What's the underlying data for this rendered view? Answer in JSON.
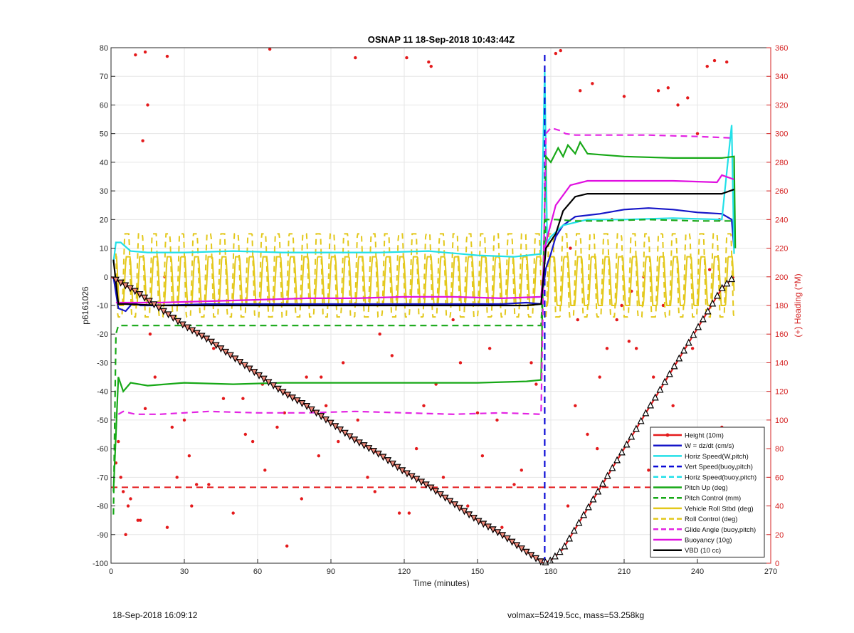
{
  "footer": {
    "left": "18-Sep-2018 16:09:12",
    "right": "volmax=52419.5cc, mass=53.258kg"
  },
  "chart_data": {
    "type": "line",
    "title": "OSNAP 11 18-Sep-2018 10:43:44Z",
    "xlabel": "Time (minutes)",
    "ylabel": "p6161026",
    "y2label": "(+) Heading (°M)",
    "xlim": [
      0,
      270
    ],
    "ylim": [
      -100,
      80
    ],
    "y2lim": [
      0,
      360
    ],
    "xticks": [
      0,
      30,
      60,
      90,
      120,
      150,
      180,
      210,
      240,
      270
    ],
    "yticks": [
      -100,
      -90,
      -80,
      -70,
      -60,
      -50,
      -40,
      -30,
      -20,
      -10,
      0,
      10,
      20,
      30,
      40,
      50,
      60,
      70,
      80
    ],
    "y2ticks": [
      0,
      20,
      40,
      60,
      80,
      100,
      120,
      140,
      160,
      180,
      200,
      220,
      240,
      260,
      280,
      300,
      320,
      340,
      360
    ],
    "grid": true,
    "legend_position": "bottom-right",
    "series": [
      {
        "name": "Height (10m)",
        "color": "#e41a1c",
        "style": "solid",
        "marker": "dot",
        "x": [
          0,
          10,
          20,
          30,
          40,
          50,
          60,
          70,
          80,
          90,
          100,
          110,
          120,
          130,
          140,
          150,
          160,
          170,
          177,
          180,
          185,
          190,
          200,
          210,
          220,
          230,
          240,
          250,
          255
        ],
        "values": [
          0,
          -5,
          -11,
          -17,
          -22,
          -28,
          -34,
          -40,
          -45,
          -51,
          -57,
          -62,
          -68,
          -73,
          -79,
          -85,
          -90,
          -96,
          -100,
          -99,
          -95,
          -88,
          -74,
          -60,
          -46,
          -32,
          -18,
          -4,
          0
        ]
      },
      {
        "name": "W = dz/dt (cm/s)",
        "color": "#1515c8",
        "style": "solid",
        "x": [
          1,
          3,
          6,
          9,
          12,
          20,
          40,
          60,
          80,
          100,
          120,
          140,
          160,
          170,
          176,
          178,
          180,
          182,
          185,
          190,
          200,
          210,
          220,
          230,
          240,
          250,
          254,
          255
        ],
        "values": [
          0,
          -11,
          -12,
          -9,
          -10,
          -10,
          -9.5,
          -9.5,
          -9.5,
          -9.5,
          -9.5,
          -9.5,
          -9.5,
          -9,
          -9.5,
          3,
          8,
          14,
          18,
          21,
          22,
          23.5,
          24,
          23.5,
          22.5,
          22,
          20,
          10
        ]
      },
      {
        "name": "Horiz Speed(W,pitch)",
        "color": "#22e0e8",
        "style": "solid",
        "x": [
          1,
          2,
          4,
          8,
          15,
          30,
          50,
          70,
          90,
          110,
          130,
          150,
          165,
          176,
          177.5,
          178.5,
          180,
          185,
          190,
          195,
          210,
          230,
          250,
          254,
          255
        ],
        "values": [
          5,
          12,
          12,
          9,
          8.5,
          8.5,
          9,
          8.5,
          8.5,
          8.5,
          9,
          7.5,
          7,
          8,
          72,
          12,
          14,
          18,
          19,
          20,
          20,
          20.5,
          20,
          53,
          8
        ]
      },
      {
        "name": "Vert Speed(buoy,pitch)",
        "color": "#0b0bd6",
        "style": "dashed",
        "x": [
          177.5,
          177.5
        ],
        "values": [
          -100,
          78
        ]
      },
      {
        "name": "Horiz Speed(buoy,pitch)",
        "color": "#22e0e8",
        "style": "dashed",
        "x": [],
        "values": []
      },
      {
        "name": "Pitch Up (deg)",
        "color": "#17a817",
        "style": "solid",
        "x": [
          1,
          2,
          3,
          5,
          8,
          15,
          30,
          50,
          70,
          90,
          110,
          130,
          150,
          170,
          176,
          176.5,
          178,
          180,
          183,
          185,
          187,
          190,
          192,
          195,
          210,
          230,
          250,
          255,
          255.5
        ],
        "values": [
          -75,
          -55,
          -35,
          -40,
          -37,
          -38,
          -37,
          -37.5,
          -37,
          -37,
          -37,
          -37,
          -37,
          -36.5,
          -36,
          -13,
          42,
          40,
          45,
          42,
          46,
          43,
          47,
          43,
          42,
          41.5,
          41.5,
          42,
          10
        ]
      },
      {
        "name": "Pitch Control (mm)",
        "color": "#17a817",
        "style": "dashed",
        "x": [
          1,
          2,
          3,
          30,
          60,
          90,
          120,
          150,
          176,
          178,
          182,
          190,
          200,
          220,
          240,
          254
        ],
        "values": [
          -83,
          -20,
          -17,
          -17,
          -17,
          -17,
          -17,
          -17,
          -17,
          20,
          20,
          19.5,
          19.5,
          20,
          19.5,
          19.5
        ]
      },
      {
        "name": "Vehicle Roll Stbd (deg)",
        "color": "#e3c81b",
        "style": "solid",
        "x": [],
        "values": []
      },
      {
        "name": "Roll Control (deg)",
        "color": "#e3c81b",
        "style": "dashed",
        "x": [],
        "values": []
      },
      {
        "name": "Glide Angle (buoy,pitch)",
        "color": "#e324e3",
        "style": "dashed",
        "x": [
          3,
          5,
          10,
          20,
          40,
          60,
          80,
          100,
          120,
          140,
          160,
          176,
          178,
          180,
          184,
          186,
          190,
          200,
          220,
          240,
          254
        ],
        "values": [
          -48,
          -47,
          -48,
          -48,
          -47,
          -47.5,
          -47.5,
          -47,
          -47.5,
          -48,
          -47.5,
          -48,
          50,
          52,
          51,
          50,
          49.5,
          49.5,
          49.5,
          49,
          48.5
        ]
      },
      {
        "name": "Buoyancy (10g)",
        "color": "#e010e0",
        "style": "solid",
        "x": [
          2,
          10,
          20,
          40,
          60,
          80,
          100,
          120,
          140,
          160,
          176,
          178,
          182,
          188,
          195,
          210,
          230,
          248,
          250,
          255
        ],
        "values": [
          -9,
          -9,
          -9,
          -8.5,
          -8,
          -7.5,
          -7.5,
          -7,
          -7,
          -7.5,
          -7,
          12,
          25,
          32,
          33.5,
          33.5,
          33.5,
          33,
          35.5,
          34
        ]
      },
      {
        "name": "VBD (10 cc)",
        "color": "#000000",
        "style": "solid",
        "x": [
          1,
          3,
          6,
          20,
          60,
          100,
          140,
          170,
          176,
          178,
          182,
          185,
          190,
          195,
          210,
          230,
          250,
          255
        ],
        "values": [
          6,
          -9.5,
          -9.5,
          -10,
          -10,
          -10,
          -10,
          -10,
          -9.5,
          10,
          15,
          23,
          28,
          29,
          29,
          29,
          29,
          30.5
        ]
      }
    ],
    "roll_trace": {
      "periods_min": 5.6,
      "segments": [
        [
          2,
          176
        ],
        [
          178,
          255
        ]
      ],
      "solid_amplitude": [
        -10,
        7
      ],
      "dashed_amplitude": [
        -14,
        15
      ]
    },
    "heading_scatter": {
      "color": "#e41a1c",
      "x": [
        10,
        14,
        15,
        13,
        23,
        65,
        100,
        121,
        130,
        131,
        23,
        33,
        54,
        14,
        6,
        3,
        5,
        8,
        11,
        16,
        22,
        27,
        30,
        35,
        42,
        50,
        58,
        62,
        68,
        72,
        80,
        85,
        88,
        95,
        105,
        110,
        118,
        125,
        133,
        140,
        146,
        150,
        155,
        160,
        168,
        172,
        182,
        184,
        192,
        197,
        199,
        203,
        207,
        210,
        213,
        218,
        224,
        228,
        232,
        236,
        240,
        244,
        247,
        249,
        252,
        188,
        190,
        195,
        215,
        220,
        226,
        230,
        238,
        242,
        245,
        187,
        191,
        200,
        205,
        209,
        212,
        222,
        234,
        250,
        2,
        4,
        7,
        12,
        18,
        25,
        32,
        40,
        46,
        55,
        63,
        71,
        78,
        86,
        93,
        101,
        108,
        115,
        122,
        128,
        136,
        143,
        152,
        158,
        165,
        174
      ],
      "values": [
        355,
        357,
        320,
        295,
        354,
        359,
        353,
        353,
        350,
        347,
        25,
        40,
        115,
        108,
        20,
        85,
        50,
        45,
        30,
        160,
        200,
        60,
        100,
        55,
        150,
        35,
        85,
        125,
        95,
        12,
        130,
        75,
        110,
        140,
        60,
        160,
        35,
        80,
        125,
        170,
        40,
        105,
        150,
        25,
        65,
        140,
        356,
        358,
        330,
        335,
        80,
        150,
        170,
        326,
        190,
        200,
        330,
        332,
        320,
        325,
        300,
        347,
        351,
        240,
        350,
        220,
        110,
        90,
        150,
        65,
        180,
        110,
        150,
        55,
        205,
        40,
        170,
        130,
        240,
        180,
        155,
        130,
        55,
        95,
        70,
        60,
        40,
        30,
        130,
        95,
        75,
        55,
        115,
        90,
        65,
        105,
        45,
        130,
        85,
        100,
        50,
        145,
        35,
        110,
        60,
        140,
        75,
        100,
        55,
        125
      ]
    },
    "depth_markers": {
      "description": "triangle markers along the Height trace",
      "x_start": 2,
      "x_end": 254,
      "count": 130
    },
    "reference_lines": [
      {
        "axis": "y2",
        "value": 53,
        "color": "#e41a1c",
        "style": "dashed"
      }
    ]
  }
}
